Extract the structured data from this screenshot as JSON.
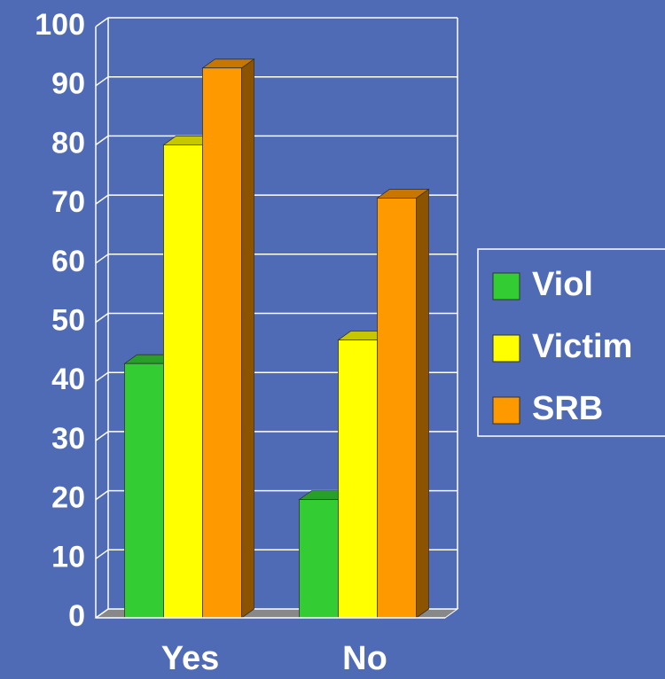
{
  "chart_data": {
    "type": "bar3d",
    "categories": [
      "Yes",
      "No"
    ],
    "series": [
      {
        "name": "Viol",
        "color": "#33cc33",
        "values": [
          43,
          20
        ]
      },
      {
        "name": "Victim",
        "color": "#ffff00",
        "values": [
          80,
          47
        ]
      },
      {
        "name": "SRB",
        "color": "#ff9900",
        "values": [
          93,
          71
        ]
      }
    ],
    "ylim": [
      0,
      100
    ],
    "yticks": [
      0,
      10,
      20,
      30,
      40,
      50,
      60,
      70,
      80,
      90,
      100
    ],
    "grid": true,
    "legend": "right"
  }
}
